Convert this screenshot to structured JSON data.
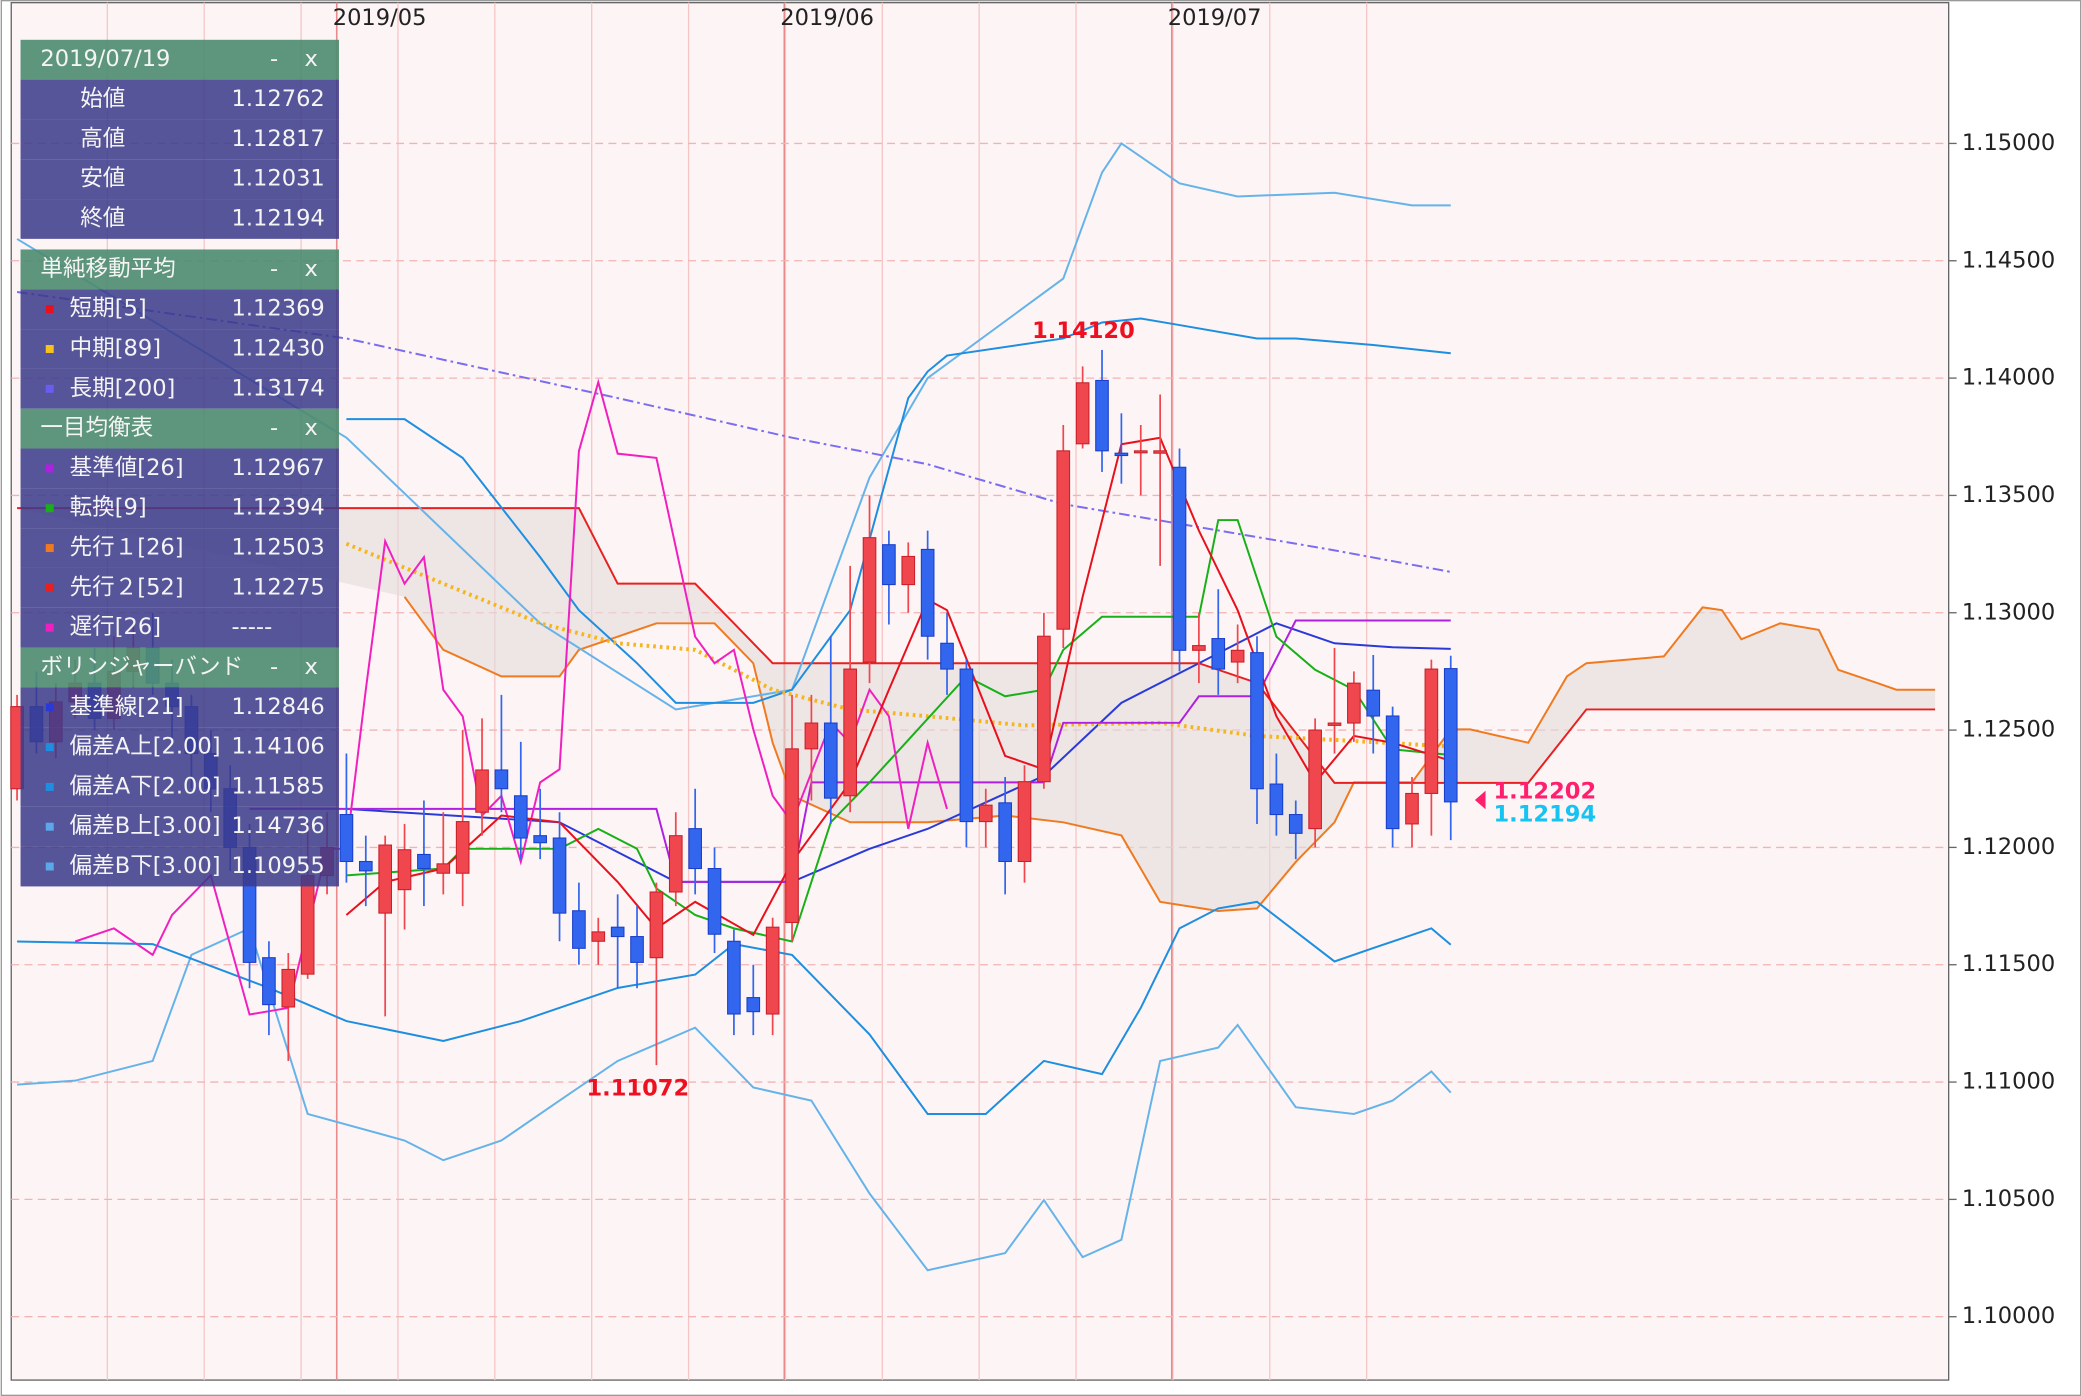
{
  "chart_data": {
    "type": "candlestick",
    "xlim": [
      -0.3,
      99.7
    ],
    "ylim": [
      1.0973,
      1.156
    ],
    "xticks": [
      {
        "value": 16.5,
        "label": "2019/05"
      },
      {
        "value": 39.6,
        "label": "2019/06"
      },
      {
        "value": 59.6,
        "label": "2019/07"
      }
    ],
    "yticks": [
      {
        "value": 1.1,
        "label": "1.10000"
      },
      {
        "value": 1.105,
        "label": "1.10500"
      },
      {
        "value": 1.11,
        "label": "1.11000"
      },
      {
        "value": 1.115,
        "label": "1.11500"
      },
      {
        "value": 1.12,
        "label": "1.12000"
      },
      {
        "value": 1.125,
        "label": "1.12500"
      },
      {
        "value": 1.13,
        "label": "1.13000"
      },
      {
        "value": 1.135,
        "label": "1.13500"
      },
      {
        "value": 1.14,
        "label": "1.14000"
      },
      {
        "value": 1.145,
        "label": "1.14500"
      },
      {
        "value": 1.15,
        "label": "1.15000"
      }
    ],
    "grid": true,
    "up_color": "#f0474f",
    "down_color": "#3366ee",
    "open": [
      1.1225,
      1.126,
      1.1245,
      1.1262,
      1.127,
      1.1255,
      1.1275,
      1.1285,
      1.127,
      1.126,
      1.124,
      1.1225,
      1.12,
      1.1153,
      1.1132,
      1.1146,
      1.1188,
      1.1214,
      1.1194,
      1.1172,
      1.1182,
      1.1197,
      1.1189,
      1.1189,
      1.1215,
      1.1233,
      1.1222,
      1.1205,
      1.1204,
      1.1173,
      1.116,
      1.1166,
      1.1162,
      1.1153,
      1.1181,
      1.1208,
      1.1191,
      1.116,
      1.1136,
      1.1129,
      1.1168,
      1.1242,
      1.1253,
      1.1222,
      1.1279,
      1.1329,
      1.1312,
      1.1327,
      1.1287,
      1.1276,
      1.1211,
      1.1219,
      1.1194,
      1.1228,
      1.1293,
      1.1372,
      1.1399,
      1.1368,
      1.1369,
      1.1368,
      1.1362,
      1.1284,
      1.1289,
      1.1279,
      1.1283,
      1.1227,
      1.1214,
      1.1208,
      1.1252,
      1.1253,
      1.1267,
      1.1256,
      1.121,
      1.1223,
      1.12762
    ],
    "high": [
      1.1265,
      1.1275,
      1.127,
      1.128,
      1.1285,
      1.129,
      1.1295,
      1.13,
      1.128,
      1.1265,
      1.125,
      1.1235,
      1.121,
      1.116,
      1.1155,
      1.121,
      1.1215,
      1.124,
      1.1205,
      1.1205,
      1.121,
      1.122,
      1.1215,
      1.125,
      1.1255,
      1.1265,
      1.1245,
      1.1225,
      1.1215,
      1.1185,
      1.117,
      1.118,
      1.1175,
      1.1185,
      1.1215,
      1.1225,
      1.12,
      1.1165,
      1.115,
      1.117,
      1.1265,
      1.1265,
      1.129,
      1.132,
      1.135,
      1.1335,
      1.133,
      1.1335,
      1.13,
      1.128,
      1.1225,
      1.123,
      1.1235,
      1.13,
      1.138,
      1.1405,
      1.1412,
      1.1385,
      1.138,
      1.1393,
      1.137,
      1.13,
      1.131,
      1.1295,
      1.129,
      1.124,
      1.122,
      1.1255,
      1.1285,
      1.1275,
      1.1282,
      1.126,
      1.123,
      1.128,
      1.12817
    ],
    "low": [
      1.122,
      1.124,
      1.1238,
      1.1255,
      1.125,
      1.125,
      1.1268,
      1.1265,
      1.1245,
      1.1225,
      1.1215,
      1.119,
      1.114,
      1.112,
      1.1109,
      1.1144,
      1.118,
      1.1185,
      1.1175,
      1.1128,
      1.1165,
      1.1175,
      1.118,
      1.1175,
      1.1205,
      1.1215,
      1.1195,
      1.1195,
      1.116,
      1.115,
      1.115,
      1.114,
      1.114,
      1.11072,
      1.1175,
      1.118,
      1.1155,
      1.112,
      1.112,
      1.112,
      1.116,
      1.122,
      1.121,
      1.1215,
      1.127,
      1.1295,
      1.13,
      1.128,
      1.1265,
      1.12,
      1.12,
      1.118,
      1.1185,
      1.1225,
      1.1285,
      1.137,
      1.136,
      1.1355,
      1.135,
      1.132,
      1.1275,
      1.127,
      1.1265,
      1.127,
      1.121,
      1.1205,
      1.1195,
      1.12,
      1.124,
      1.1245,
      1.124,
      1.12,
      1.12,
      1.1205,
      1.12031
    ],
    "close": [
      1.126,
      1.1245,
      1.1262,
      1.127,
      1.1255,
      1.1275,
      1.1285,
      1.127,
      1.126,
      1.124,
      1.1225,
      1.12,
      1.1151,
      1.1133,
      1.1148,
      1.1188,
      1.12,
      1.1194,
      1.119,
      1.1201,
      1.1199,
      1.1191,
      1.1193,
      1.1211,
      1.1233,
      1.1225,
      1.1204,
      1.1202,
      1.1172,
      1.1157,
      1.1164,
      1.1162,
      1.1151,
      1.1181,
      1.1205,
      1.1191,
      1.1163,
      1.1129,
      1.113,
      1.1166,
      1.1242,
      1.1253,
      1.1221,
      1.1276,
      1.1332,
      1.1312,
      1.1324,
      1.129,
      1.1276,
      1.1211,
      1.1218,
      1.1194,
      1.1228,
      1.129,
      1.1369,
      1.1398,
      1.1369,
      1.1367,
      1.1369,
      1.1369,
      1.1284,
      1.1286,
      1.1276,
      1.1284,
      1.1225,
      1.1214,
      1.1206,
      1.125,
      1.1253,
      1.127,
      1.1256,
      1.1208,
      1.1223,
      1.1276,
      1.12194
    ],
    "cloud": {
      "fill": "#e2dcda",
      "span_a": {
        "color": "#f07a20",
        "x": [
          20,
          22,
          25,
          28,
          29,
          31,
          33,
          36,
          38,
          39,
          40,
          43,
          47,
          51,
          54,
          57,
          59,
          62,
          64,
          66,
          68,
          69,
          72,
          74,
          75,
          78,
          80,
          81,
          85,
          87,
          88,
          89,
          91,
          93,
          94,
          96,
          97,
          99
        ],
        "values": [
          1.13068,
          1.12842,
          1.12729,
          1.12729,
          1.12842,
          1.12898,
          1.12955,
          1.12955,
          1.12785,
          1.12446,
          1.1222,
          1.12107,
          1.12107,
          1.12136,
          1.12107,
          1.12051,
          1.11768,
          1.11729,
          1.1174,
          1.11938,
          1.12107,
          1.12277,
          1.12277,
          1.12503,
          1.12503,
          1.12446,
          1.12729,
          1.12785,
          1.12814,
          1.13023,
          1.13011,
          1.12887,
          1.12955,
          1.12927,
          1.12757,
          1.12701,
          1.12672,
          1.12672
        ]
      },
      "span_b": {
        "color": "#e82020",
        "x": [
          0,
          29,
          31,
          35,
          37,
          39,
          61,
          64,
          68,
          78,
          81,
          99
        ],
        "values": [
          1.13446,
          1.13446,
          1.13124,
          1.13124,
          1.12955,
          1.12785,
          1.12785,
          1.12701,
          1.12275,
          1.12275,
          1.12588,
          1.12588
        ]
      }
    },
    "lines": [
      {
        "color": "#66b3ea",
        "dash": "solid",
        "x": [
          0,
          17,
          27,
          34,
          40,
          44,
          47,
          54,
          56,
          57,
          60,
          63,
          68,
          72,
          74
        ],
        "values": [
          1.14593,
          1.13746,
          1.12955,
          1.12588,
          1.12672,
          1.13576,
          1.14,
          1.14424,
          1.14876,
          1.15,
          1.1483,
          1.14774,
          1.1479,
          1.14736,
          1.14736
        ]
      },
      {
        "color": "#66b3ea",
        "dash": "solid",
        "x": [
          0,
          3,
          7,
          9,
          12,
          15,
          20,
          22,
          25,
          28,
          31,
          35,
          38,
          41,
          44,
          47,
          51,
          53,
          55,
          57,
          59,
          62,
          63,
          66,
          69,
          71,
          73,
          74
        ],
        "values": [
          1.10989,
          1.11006,
          1.1109,
          1.11542,
          1.11655,
          1.10864,
          1.10751,
          1.10667,
          1.10751,
          1.10921,
          1.1109,
          1.11232,
          1.10977,
          1.10921,
          1.10525,
          1.10198,
          1.10271,
          1.10497,
          1.10254,
          1.10328,
          1.1109,
          1.11147,
          1.11243,
          1.10893,
          1.10864,
          1.10921,
          1.11045,
          1.10955
        ]
      },
      {
        "color": "#1e8ee0",
        "dash": "solid",
        "x": [
          17,
          20,
          23,
          27,
          29,
          32,
          34,
          38,
          40,
          43,
          46,
          47,
          48,
          54,
          56,
          58,
          60,
          64,
          66,
          70,
          74
        ],
        "values": [
          1.13825,
          1.13825,
          1.1366,
          1.13237,
          1.13011,
          1.12785,
          1.12616,
          1.12616,
          1.12672,
          1.13011,
          1.13915,
          1.14028,
          1.14096,
          1.14169,
          1.14237,
          1.14254,
          1.14226,
          1.14169,
          1.14169,
          1.14141,
          1.14106
        ]
      },
      {
        "color": "#1e8ee0",
        "dash": "solid",
        "x": [
          0,
          7,
          13,
          17,
          22,
          26,
          31,
          35,
          37,
          40,
          44,
          47,
          50,
          53,
          56,
          58,
          60,
          62,
          64,
          68,
          70,
          73,
          74
        ],
        "values": [
          1.11599,
          1.11588,
          1.11401,
          1.1126,
          1.11175,
          1.1126,
          1.11401,
          1.11458,
          1.11588,
          1.11542,
          1.11203,
          1.10864,
          1.10864,
          1.1109,
          1.11034,
          1.11316,
          1.11655,
          1.1174,
          1.11768,
          1.11514,
          1.11571,
          1.11655,
          1.11585
        ]
      },
      {
        "color": "#2a3ad8",
        "dash": "solid",
        "x": [
          17,
          28,
          34,
          40,
          44,
          47,
          53,
          57,
          61,
          65,
          68,
          71,
          74
        ],
        "values": [
          1.12164,
          1.12107,
          1.11853,
          1.11853,
          1.11994,
          1.12079,
          1.12305,
          1.12616,
          1.12785,
          1.12955,
          1.1287,
          1.12853,
          1.12846
        ]
      },
      {
        "color": "#7b6cf0",
        "dash": "dashdot",
        "x": [
          0,
          17,
          31,
          40,
          47,
          54,
          60,
          68,
          74
        ],
        "values": [
          1.14367,
          1.14169,
          1.13915,
          1.13746,
          1.13633,
          1.13463,
          1.13379,
          1.13266,
          1.13174
        ]
      },
      {
        "color": "#f6b51c",
        "dash": "dotted",
        "x": [
          17,
          22,
          27,
          31,
          35,
          39,
          43,
          47,
          52,
          59,
          64,
          68,
          74
        ],
        "values": [
          1.13294,
          1.13124,
          1.12955,
          1.1287,
          1.12842,
          1.12672,
          1.12588,
          1.12559,
          1.1252,
          1.12531,
          1.12475,
          1.12458,
          1.1243
        ]
      },
      {
        "color": "#b020e0",
        "dash": "solid",
        "x": [
          12,
          33,
          34,
          40,
          41,
          53,
          54,
          60,
          61,
          64,
          66,
          74
        ],
        "values": [
          1.12164,
          1.12164,
          1.11853,
          1.11853,
          1.12277,
          1.12277,
          1.12531,
          1.12531,
          1.12644,
          1.12644,
          1.12967,
          1.12967
        ]
      },
      {
        "color": "#18b018",
        "dash": "solid",
        "x": [
          17,
          22,
          23,
          28,
          30,
          32,
          33,
          35,
          37,
          40,
          42,
          44,
          49,
          51,
          53,
          54,
          56,
          61,
          62,
          63,
          65,
          67,
          69,
          71,
          74
        ],
        "values": [
          1.11881,
          1.1191,
          1.11994,
          1.11994,
          1.12079,
          1.11994,
          1.11825,
          1.11712,
          1.11655,
          1.11599,
          1.12107,
          1.12277,
          1.12729,
          1.12644,
          1.12672,
          1.12842,
          1.12983,
          1.12983,
          1.13395,
          1.13395,
          1.12898,
          1.12757,
          1.12672,
          1.12418,
          1.12394
        ]
      },
      {
        "color": "#f020c0",
        "dash": "solid",
        "x": [
          3,
          5,
          7,
          8,
          10,
          12,
          14,
          16,
          17,
          18,
          19,
          20,
          21,
          22,
          23,
          24,
          25,
          26,
          27,
          28,
          29,
          30,
          31,
          33,
          35,
          36,
          37,
          38,
          39,
          40,
          42,
          43,
          44,
          45,
          46,
          47,
          48
        ],
        "values": [
          1.11599,
          1.11655,
          1.11542,
          1.11712,
          1.11881,
          1.11288,
          1.11316,
          1.11994,
          1.11994,
          1.12672,
          1.13305,
          1.13124,
          1.13237,
          1.12672,
          1.12559,
          1.12136,
          1.1222,
          1.11938,
          1.12277,
          1.12333,
          1.13689,
          1.13983,
          1.13678,
          1.1366,
          1.12898,
          1.12785,
          1.12842,
          1.12503,
          1.1222,
          1.12107,
          1.12531,
          1.12446,
          1.12672,
          1.12559,
          1.12079,
          1.12446,
          1.12164
        ]
      },
      {
        "color": "#e8101c",
        "dash": "solid",
        "x": [
          17,
          19,
          22,
          25,
          28,
          31,
          33,
          35,
          38,
          40,
          43,
          45,
          47,
          48,
          51,
          53,
          55,
          57,
          59,
          61,
          63,
          65,
          67,
          69,
          71,
          74
        ],
        "values": [
          1.11712,
          1.11853,
          1.1191,
          1.12136,
          1.12107,
          1.11853,
          1.11655,
          1.11768,
          1.11627,
          1.11938,
          1.12277,
          1.12672,
          1.13056,
          1.13011,
          1.1239,
          1.12333,
          1.13068,
          1.13718,
          1.13746,
          1.1335,
          1.13011,
          1.12559,
          1.12277,
          1.12475,
          1.12446,
          1.12369
        ]
      }
    ],
    "annotations": [
      {
        "label": "1.14120",
        "value": 1.1412,
        "x": 56,
        "color": "#ee1020"
      },
      {
        "label": "1.11072",
        "value": 1.11072,
        "x": 33,
        "color": "#ee1020"
      }
    ],
    "price_tags": [
      {
        "label": "1.12202",
        "value": 1.12202,
        "color": "#ff1f6e"
      },
      {
        "label": "1.12194",
        "value": 1.12194,
        "color": "#17c3f2"
      }
    ]
  },
  "panel_controls": [
    "-",
    "x"
  ],
  "panels": [
    {
      "title": "2019/07/19",
      "rows": [
        {
          "label": "始値",
          "value": "1.12762"
        },
        {
          "label": "高値",
          "value": "1.12817"
        },
        {
          "label": "安値",
          "value": "1.12031"
        },
        {
          "label": "終値",
          "value": "1.12194"
        }
      ]
    },
    {
      "title": "単純移動平均",
      "rows": [
        {
          "label": "短期[5]",
          "value": "1.12369",
          "color": "#e8101c"
        },
        {
          "label": "中期[89]",
          "value": "1.12430",
          "color": "#f6c21c"
        },
        {
          "label": "長期[200]",
          "value": "1.13174",
          "color": "#6a5cf0"
        }
      ]
    },
    {
      "title": "一目均衡表",
      "rows": [
        {
          "label": "基準値[26]",
          "value": "1.12967",
          "color": "#b020e0"
        },
        {
          "label": "転換[9]",
          "value": "1.12394",
          "color": "#18b018"
        },
        {
          "label": "先行１[26]",
          "value": "1.12503",
          "color": "#f07a20"
        },
        {
          "label": "先行２[52]",
          "value": "1.12275",
          "color": "#e82020"
        },
        {
          "label": "遅行[26]",
          "value": "-----",
          "color": "#f020c0"
        }
      ]
    },
    {
      "title": "ボリンジャーバンド",
      "rows": [
        {
          "label": "基準線[21]",
          "value": "1.12846",
          "color": "#2a3ad8"
        },
        {
          "label": "偏差A上[2.00]",
          "value": "1.14106",
          "color": "#1e8ee0"
        },
        {
          "label": "偏差A下[2.00]",
          "value": "1.11585",
          "color": "#1e8ee0"
        },
        {
          "label": "偏差B上[3.00]",
          "value": "1.14736",
          "color": "#5aa8ea"
        },
        {
          "label": "偏差B下[3.00]",
          "value": "1.10955",
          "color": "#5aa8ea"
        }
      ]
    }
  ]
}
